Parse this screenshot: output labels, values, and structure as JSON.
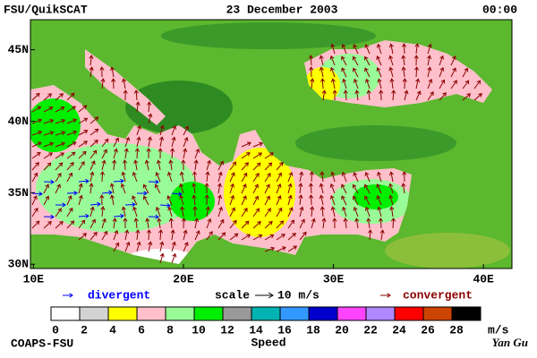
{
  "header": {
    "left": "FSU/QuikSCAT",
    "center": "23 December 2003",
    "right": "00:00"
  },
  "map": {
    "xlim": [
      9.8,
      41.9
    ],
    "ylim": [
      29.7,
      47.1
    ],
    "xticks": [
      {
        "value": 10,
        "label": "10E"
      },
      {
        "value": 20,
        "label": "20E"
      },
      {
        "value": 30,
        "label": "30E"
      },
      {
        "value": 40,
        "label": "40E"
      }
    ],
    "yticks": [
      {
        "value": 45,
        "label": "45N"
      },
      {
        "value": 40,
        "label": "40N"
      },
      {
        "value": 35,
        "label": "35N"
      },
      {
        "value": 30,
        "label": "30N"
      }
    ]
  },
  "legend": {
    "divergent": "divergent",
    "divergent_color": "#0000ff",
    "scale": "scale",
    "scale_value": "10 m/s",
    "convergent": "convergent",
    "convergent_color": "#8b0000"
  },
  "colorbar": {
    "title": "Speed",
    "unit": "m/s",
    "colors": [
      "#ffffff",
      "#d3d3d3",
      "#ffff00",
      "#ffc0cb",
      "#98fb98",
      "#00ee00",
      "#999999",
      "#00b2b2",
      "#3399ff",
      "#0000cd",
      "#ff44ff",
      "#b088ff",
      "#ff0000",
      "#cc4400",
      "#000000"
    ],
    "ticks": [
      0,
      2,
      4,
      6,
      8,
      10,
      12,
      14,
      16,
      18,
      20,
      22,
      24,
      26,
      28
    ]
  },
  "footer": {
    "left": "COAPS-FSU",
    "right": "Yan Gu"
  }
}
